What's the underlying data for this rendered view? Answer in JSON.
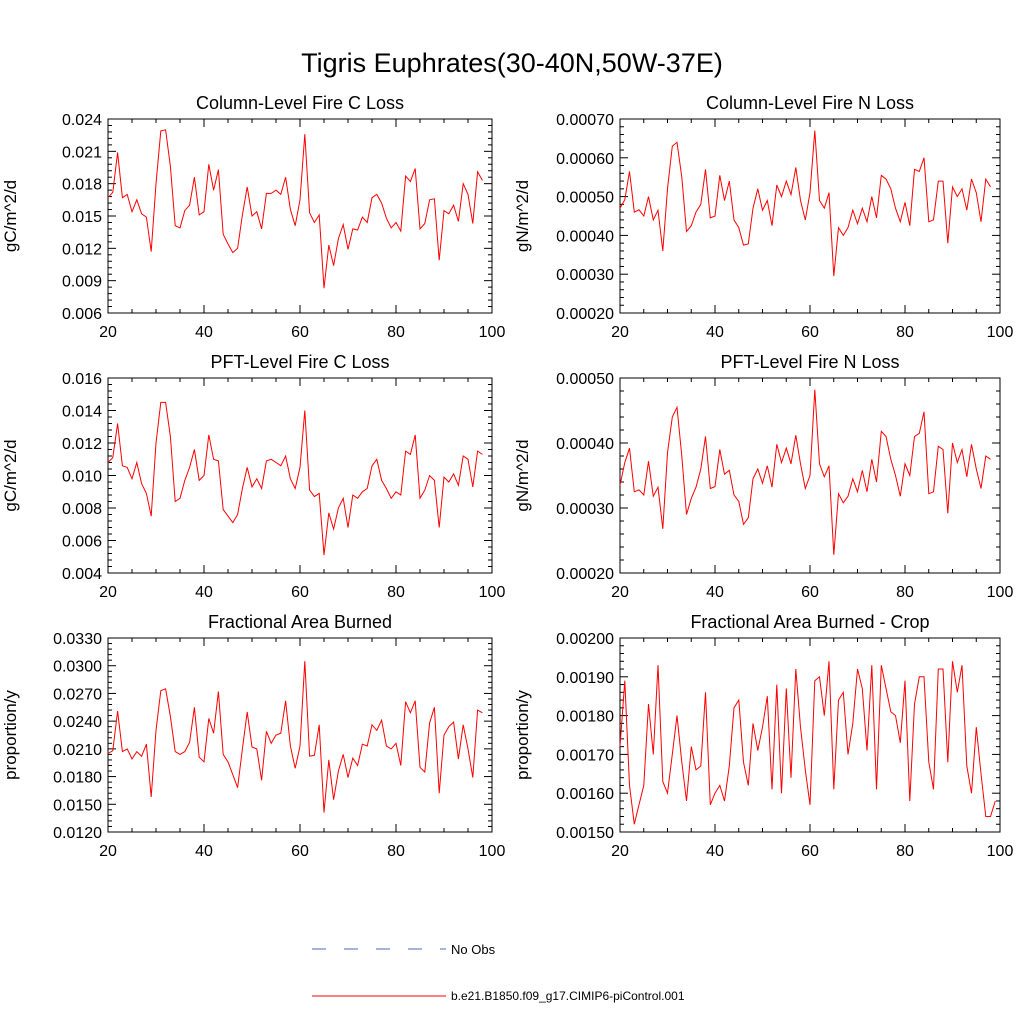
{
  "page": {
    "title": "Tigris Euphrates(30-40N,50W-37E)"
  },
  "legend": {
    "obs_label": "No Obs",
    "obs_color": "#4a6bb0",
    "model_label": "b.e21.B1850.f09_g17.CIMIP6-piControl.001",
    "model_color": "#ff0000"
  },
  "chart_data": [
    {
      "type": "line",
      "title": "Column-Level Fire C Loss",
      "xlabel": "",
      "ylabel": "gC/m^2/d",
      "xlim": [
        20,
        100
      ],
      "ylim": [
        0.006,
        0.024
      ],
      "xticks": [
        20,
        40,
        60,
        80,
        100
      ],
      "xtick_labels": [
        "20",
        "40",
        "60",
        "80",
        "100"
      ],
      "yticks": [
        0.006,
        0.009,
        0.012,
        0.015,
        0.018,
        0.021,
        0.024
      ],
      "ytick_labels": [
        "0.006",
        "0.009",
        "0.012",
        "0.015",
        "0.018",
        "0.021",
        "0.024"
      ],
      "series": [
        {
          "name": "b.e21.B1850.f09_g17.CIMIP6-piControl.001",
          "x_start": 20,
          "values": [
            0.0167,
            0.0172,
            0.0209,
            0.0167,
            0.017,
            0.0154,
            0.0165,
            0.0152,
            0.0149,
            0.0117,
            0.018,
            0.0229,
            0.023,
            0.0196,
            0.0141,
            0.0139,
            0.0155,
            0.016,
            0.0186,
            0.0151,
            0.0154,
            0.0198,
            0.0174,
            0.0193,
            0.0133,
            0.0124,
            0.0116,
            0.012,
            0.0151,
            0.0177,
            0.015,
            0.0154,
            0.0138,
            0.0171,
            0.0171,
            0.0174,
            0.017,
            0.0186,
            0.0156,
            0.0141,
            0.0165,
            0.0226,
            0.0153,
            0.0144,
            0.0151,
            0.0083,
            0.0123,
            0.0104,
            0.0129,
            0.0142,
            0.0119,
            0.0138,
            0.0137,
            0.0149,
            0.0144,
            0.0167,
            0.017,
            0.0162,
            0.0148,
            0.0139,
            0.0144,
            0.0136,
            0.0187,
            0.0182,
            0.0194,
            0.0138,
            0.0143,
            0.0165,
            0.0166,
            0.0109,
            0.0155,
            0.0152,
            0.016,
            0.0145,
            0.018,
            0.017,
            0.0143,
            0.0191,
            0.0183
          ]
        }
      ]
    },
    {
      "type": "line",
      "title": "Column-Level Fire N Loss",
      "xlabel": "",
      "ylabel": "gN/m^2/d",
      "xlim": [
        20,
        100
      ],
      "ylim": [
        0.0002,
        0.0007
      ],
      "xticks": [
        20,
        40,
        60,
        80,
        100
      ],
      "xtick_labels": [
        "20",
        "40",
        "60",
        "80",
        "100"
      ],
      "yticks": [
        0.0002,
        0.0003,
        0.0004,
        0.0005,
        0.0006,
        0.0007
      ],
      "ytick_labels": [
        "0.00020",
        "0.00030",
        "0.00040",
        "0.00050",
        "0.00060",
        "0.00070"
      ],
      "series": [
        {
          "name": "b.e21.B1850.f09_g17.CIMIP6-piControl.001",
          "x_start": 20,
          "values": [
            0.00047,
            0.000492,
            0.000565,
            0.00046,
            0.000466,
            0.00045,
            0.0005,
            0.00044,
            0.000465,
            0.00036,
            0.00052,
            0.00063,
            0.00064,
            0.00055,
            0.00041,
            0.000425,
            0.00046,
            0.00048,
            0.00057,
            0.000445,
            0.00045,
            0.000555,
            0.00049,
            0.00054,
            0.00044,
            0.00042,
            0.000375,
            0.000378,
            0.00047,
            0.00052,
            0.000465,
            0.00049,
            0.000425,
            0.00053,
            0.0005,
            0.00054,
            0.000505,
            0.000575,
            0.00049,
            0.00044,
            0.00051,
            0.00067,
            0.00049,
            0.00047,
            0.00051,
            0.000295,
            0.00042,
            0.0004,
            0.00042,
            0.000465,
            0.00043,
            0.00047,
            0.000435,
            0.0005,
            0.000445,
            0.000555,
            0.000545,
            0.00052,
            0.00047,
            0.000435,
            0.000485,
            0.000425,
            0.00057,
            0.000565,
            0.0006,
            0.000435,
            0.00044,
            0.00054,
            0.00054,
            0.00038,
            0.000525,
            0.0005,
            0.00052,
            0.000465,
            0.000545,
            0.00051,
            0.000435,
            0.000545,
            0.000525
          ]
        }
      ]
    },
    {
      "type": "line",
      "title": "PFT-Level Fire C Loss",
      "xlabel": "",
      "ylabel": "gC/m^2/d",
      "xlim": [
        20,
        100
      ],
      "ylim": [
        0.004,
        0.016
      ],
      "xticks": [
        20,
        40,
        60,
        80,
        100
      ],
      "xtick_labels": [
        "20",
        "40",
        "60",
        "80",
        "100"
      ],
      "yticks": [
        0.004,
        0.006,
        0.008,
        0.01,
        0.012,
        0.014,
        0.016
      ],
      "ytick_labels": [
        "0.004",
        "0.006",
        "0.008",
        "0.010",
        "0.012",
        "0.014",
        "0.016"
      ],
      "series": [
        {
          "name": "b.e21.B1850.f09_g17.CIMIP6-piControl.001",
          "x_start": 20,
          "values": [
            0.0108,
            0.0111,
            0.0132,
            0.0106,
            0.0105,
            0.0098,
            0.0108,
            0.0095,
            0.0089,
            0.0075,
            0.012,
            0.0145,
            0.0145,
            0.0124,
            0.0084,
            0.0086,
            0.0097,
            0.0105,
            0.0116,
            0.0097,
            0.01,
            0.0125,
            0.011,
            0.0109,
            0.0079,
            0.0075,
            0.0071,
            0.0076,
            0.0092,
            0.0105,
            0.0093,
            0.0098,
            0.0092,
            0.0109,
            0.011,
            0.0108,
            0.0106,
            0.0112,
            0.0098,
            0.0092,
            0.0105,
            0.014,
            0.0091,
            0.0087,
            0.0089,
            0.0051,
            0.0077,
            0.0067,
            0.008,
            0.0086,
            0.0068,
            0.0088,
            0.0086,
            0.009,
            0.0092,
            0.0106,
            0.011,
            0.0097,
            0.0092,
            0.0086,
            0.009,
            0.0088,
            0.0115,
            0.0113,
            0.0125,
            0.0086,
            0.0091,
            0.01,
            0.0097,
            0.0068,
            0.0099,
            0.0096,
            0.0101,
            0.0094,
            0.0112,
            0.011,
            0.0093,
            0.0115,
            0.0113
          ]
        }
      ]
    },
    {
      "type": "line",
      "title": "PFT-Level Fire N Loss",
      "xlabel": "",
      "ylabel": "gN/m^2/d",
      "xlim": [
        20,
        100
      ],
      "ylim": [
        0.0002,
        0.0005
      ],
      "xticks": [
        20,
        40,
        60,
        80,
        100
      ],
      "xtick_labels": [
        "20",
        "40",
        "60",
        "80",
        "100"
      ],
      "yticks": [
        0.0002,
        0.0003,
        0.0004,
        0.0005
      ],
      "ytick_labels": [
        "0.00020",
        "0.00030",
        "0.00040",
        "0.00050"
      ],
      "series": [
        {
          "name": "b.e21.B1850.f09_g17.CIMIP6-piControl.001",
          "x_start": 20,
          "values": [
            0.000335,
            0.00037,
            0.000392,
            0.000325,
            0.000328,
            0.00032,
            0.000372,
            0.000318,
            0.000332,
            0.000268,
            0.000385,
            0.00044,
            0.000455,
            0.00038,
            0.00029,
            0.000315,
            0.000332,
            0.00036,
            0.00041,
            0.00033,
            0.000333,
            0.00039,
            0.000352,
            0.000358,
            0.00032,
            0.00031,
            0.000275,
            0.000285,
            0.000345,
            0.00036,
            0.000338,
            0.000365,
            0.000332,
            0.000398,
            0.00037,
            0.000392,
            0.000368,
            0.000412,
            0.000368,
            0.00033,
            0.00035,
            0.000482,
            0.000368,
            0.000348,
            0.000365,
            0.000228,
            0.000322,
            0.000308,
            0.000318,
            0.000345,
            0.000325,
            0.000358,
            0.000325,
            0.000375,
            0.00034,
            0.000418,
            0.00041,
            0.000375,
            0.00035,
            0.000318,
            0.000368,
            0.00035,
            0.00041,
            0.000415,
            0.000448,
            0.000322,
            0.000325,
            0.000395,
            0.00039,
            0.000292,
            0.0004,
            0.00037,
            0.00039,
            0.000348,
            0.000398,
            0.00036,
            0.00033,
            0.00038,
            0.000375
          ]
        }
      ]
    },
    {
      "type": "line",
      "title": "Fractional Area Burned",
      "xlabel": "",
      "ylabel": "proportion/y",
      "xlim": [
        20,
        100
      ],
      "ylim": [
        0.012,
        0.033
      ],
      "xticks": [
        20,
        40,
        60,
        80,
        100
      ],
      "xtick_labels": [
        "20",
        "40",
        "60",
        "80",
        "100"
      ],
      "yticks": [
        0.012,
        0.015,
        0.018,
        0.021,
        0.024,
        0.027,
        0.03,
        0.033
      ],
      "ytick_labels": [
        "0.0120",
        "0.0150",
        "0.0180",
        "0.0210",
        "0.0240",
        "0.0270",
        "0.0300",
        "0.0330"
      ],
      "series": [
        {
          "name": "b.e21.B1850.f09_g17.CIMIP6-piControl.001",
          "x_start": 20,
          "values": [
            0.0205,
            0.0208,
            0.0251,
            0.0207,
            0.021,
            0.0199,
            0.0207,
            0.0202,
            0.0215,
            0.0158,
            0.023,
            0.0273,
            0.0275,
            0.0245,
            0.0207,
            0.0204,
            0.0207,
            0.0217,
            0.0255,
            0.0201,
            0.0196,
            0.0243,
            0.0227,
            0.0272,
            0.0204,
            0.0196,
            0.0182,
            0.0168,
            0.021,
            0.025,
            0.0212,
            0.021,
            0.0176,
            0.0229,
            0.0216,
            0.0225,
            0.0227,
            0.0262,
            0.0213,
            0.0189,
            0.0213,
            0.0305,
            0.0202,
            0.0203,
            0.0236,
            0.0141,
            0.0198,
            0.0155,
            0.0186,
            0.0204,
            0.0179,
            0.02,
            0.0192,
            0.0215,
            0.0213,
            0.0236,
            0.023,
            0.0241,
            0.0213,
            0.021,
            0.0216,
            0.0192,
            0.0261,
            0.0249,
            0.0262,
            0.019,
            0.0185,
            0.0238,
            0.0255,
            0.0162,
            0.0225,
            0.0234,
            0.0239,
            0.0199,
            0.0236,
            0.021,
            0.0179,
            0.0252,
            0.0249
          ]
        }
      ]
    },
    {
      "type": "line",
      "title": "Fractional Area Burned - Crop",
      "xlabel": "",
      "ylabel": "proportion/y",
      "xlim": [
        20,
        100
      ],
      "ylim": [
        0.0015,
        0.002
      ],
      "xticks": [
        20,
        40,
        60,
        80,
        100
      ],
      "xtick_labels": [
        "20",
        "40",
        "60",
        "80",
        "100"
      ],
      "yticks": [
        0.0015,
        0.0016,
        0.0017,
        0.0018,
        0.0019,
        0.002
      ],
      "ytick_labels": [
        "0.00150",
        "0.00160",
        "0.00170",
        "0.00180",
        "0.00190",
        "0.00200"
      ],
      "series": [
        {
          "name": "b.e21.B1850.f09_g17.CIMIP6-piControl.001",
          "x_start": 20,
          "values": [
            0.00172,
            0.00189,
            0.00162,
            0.00152,
            0.00157,
            0.00162,
            0.00183,
            0.0017,
            0.00193,
            0.00163,
            0.0016,
            0.0017,
            0.0018,
            0.00168,
            0.00158,
            0.00172,
            0.00166,
            0.00167,
            0.00186,
            0.00157,
            0.0016,
            0.00162,
            0.00158,
            0.00167,
            0.00182,
            0.00184,
            0.00168,
            0.00162,
            0.00178,
            0.00171,
            0.00177,
            0.00185,
            0.00161,
            0.00188,
            0.0016,
            0.00187,
            0.00164,
            0.00192,
            0.00177,
            0.00166,
            0.00157,
            0.00189,
            0.0019,
            0.0018,
            0.00194,
            0.00161,
            0.00184,
            0.00186,
            0.0017,
            0.00178,
            0.00192,
            0.00187,
            0.00171,
            0.00193,
            0.00161,
            0.00193,
            0.00187,
            0.00181,
            0.0018,
            0.00173,
            0.00189,
            0.00158,
            0.00183,
            0.0019,
            0.0019,
            0.00168,
            0.00161,
            0.00192,
            0.00192,
            0.00168,
            0.00194,
            0.00186,
            0.00193,
            0.00167,
            0.0016,
            0.00177,
            0.00165,
            0.00154,
            0.00154,
            0.00158
          ]
        }
      ]
    }
  ]
}
